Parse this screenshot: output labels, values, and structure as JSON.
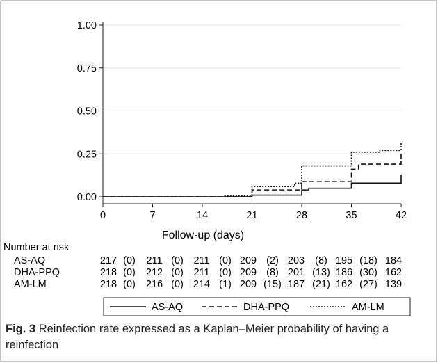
{
  "chart_data": {
    "type": "line",
    "subtype": "kaplan-meier-step",
    "xlabel": "Follow-up (days)",
    "ylabel": "",
    "xlim": [
      0,
      42
    ],
    "ylim": [
      0,
      1
    ],
    "x_ticks": [
      "0",
      "7",
      "14",
      "21",
      "28",
      "35",
      "42"
    ],
    "y_ticks": [
      "0.00",
      "0.25",
      "0.50",
      "0.75",
      "1.00"
    ],
    "grid": "horizontal",
    "legend_position": "bottom",
    "series": [
      {
        "name": "AS-AQ",
        "style": "solid",
        "x": [
          0,
          21,
          28,
          29,
          35,
          42,
          42
        ],
        "y": [
          0,
          0.01,
          0.04,
          0.05,
          0.08,
          0.08,
          0.13
        ]
      },
      {
        "name": "DHA-PPQ",
        "style": "dashed",
        "x": [
          0,
          21,
          28,
          35,
          36,
          42,
          42
        ],
        "y": [
          0,
          0.04,
          0.09,
          0.16,
          0.19,
          0.19,
          0.25
        ]
      },
      {
        "name": "AM-LM",
        "style": "dotted",
        "x": [
          0,
          17,
          21,
          27,
          28,
          35,
          39,
          42,
          42
        ],
        "y": [
          0,
          0.005,
          0.06,
          0.08,
          0.18,
          0.26,
          0.27,
          0.27,
          0.32
        ]
      }
    ],
    "risk_table": {
      "title": "Number at risk",
      "rows": [
        {
          "label": "AS-AQ",
          "cells": [
            "217",
            "(0)",
            "211",
            "(0)",
            "211",
            "(0)",
            "209",
            "(2)",
            "203",
            "(8)",
            "195",
            "(18)",
            "184"
          ]
        },
        {
          "label": "DHA-PPQ",
          "cells": [
            "218",
            "(0)",
            "212",
            "(0)",
            "211",
            "(0)",
            "209",
            "(8)",
            "201",
            "(13)",
            "186",
            "(30)",
            "162"
          ]
        },
        {
          "label": "AM-LM",
          "cells": [
            "218",
            "(0)",
            "216",
            "(0)",
            "214",
            "(1)",
            "209",
            "(15)",
            "187",
            "(21)",
            "162",
            "(27)",
            "139"
          ]
        }
      ]
    }
  },
  "caption": {
    "label": "Fig. 3",
    "text": "Reinfection rate expressed as a Kaplan–Meier probability of having a reinfection"
  },
  "colors": {
    "line": "#111111",
    "grid": "#e6e6e6",
    "frame": "#888888"
  }
}
